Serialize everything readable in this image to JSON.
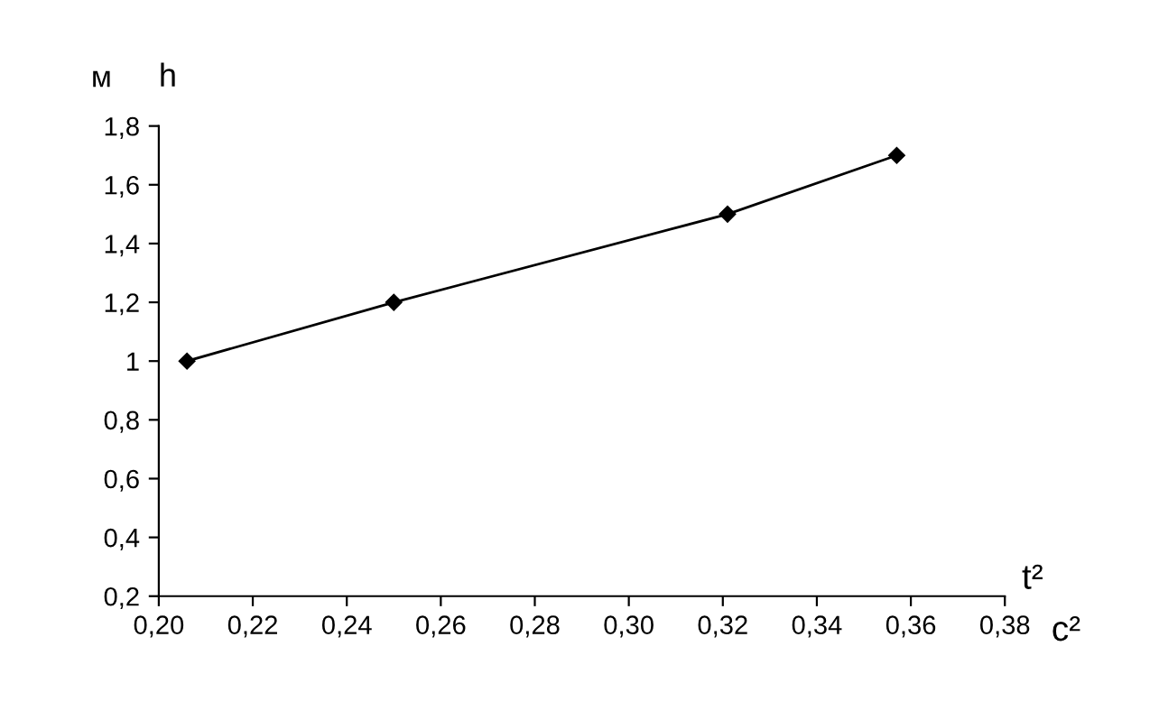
{
  "chart_data": {
    "type": "line",
    "ylabel": "h",
    "xlabel": "t²",
    "annotations": [
      "м",
      "с²"
    ],
    "x": [
      0.206,
      0.25,
      0.321,
      0.357
    ],
    "series": [
      {
        "color": "#000000",
        "values": [
          1.0,
          1.2,
          1.5,
          1.7
        ]
      }
    ],
    "xlim": [
      0.2,
      0.38
    ],
    "xticks": [
      {
        "value": 0.2,
        "label": "0,20"
      },
      {
        "value": 0.22,
        "label": "0,22"
      },
      {
        "value": 0.24,
        "label": "0,24"
      },
      {
        "value": 0.26,
        "label": "0,26"
      },
      {
        "value": 0.28,
        "label": "0,28"
      },
      {
        "value": 0.3,
        "label": "0,30"
      },
      {
        "value": 0.32,
        "label": "0,32"
      },
      {
        "value": 0.34,
        "label": "0,34"
      },
      {
        "value": 0.36,
        "label": "0,36"
      },
      {
        "value": 0.38,
        "label": "0,38"
      }
    ],
    "ylim": [
      0.2,
      1.8
    ],
    "yticks": [
      {
        "value": 0.2,
        "label": "0,2"
      },
      {
        "value": 0.4,
        "label": "0,4"
      },
      {
        "value": 0.6,
        "label": "0,6"
      },
      {
        "value": 0.8,
        "label": "0,8"
      },
      1,
      {
        "value": 1.2,
        "label": "1,2"
      },
      {
        "value": 1.4,
        "label": "1,4"
      },
      {
        "value": 1.6,
        "label": "1,6"
      },
      {
        "value": 1.8,
        "label": "1,8"
      }
    ],
    "marker": "diamond",
    "line_style": "solid",
    "grid": false,
    "legend": false
  }
}
